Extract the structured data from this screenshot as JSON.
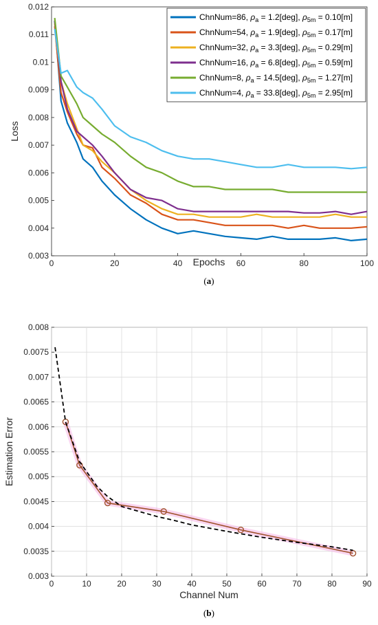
{
  "chart_data": [
    {
      "type": "line",
      "panel": "(a)",
      "panel_prefix": "(",
      "panel_letter": "a",
      "panel_suffix": ")",
      "xlabel": "Epochs",
      "ylabel": "Loss",
      "xlim": [
        0,
        100
      ],
      "ylim": [
        0.003,
        0.012
      ],
      "xticks": [
        "0",
        "20",
        "40",
        "60",
        "80",
        "100"
      ],
      "yticks": [
        "0.003",
        "0.004",
        "0.005",
        "0.006",
        "0.007",
        "0.008",
        "0.009",
        "0.01",
        "0.011",
        "0.012"
      ],
      "grid": false,
      "legend_position": "top-right",
      "legend_label_parts": {
        "rho": "ρ",
        "sub_a": "a",
        "sub_5m": "5m"
      },
      "series": [
        {
          "name": "ChnNum=86, ρa = 1.2[deg], ρ5m = 0.10[m]",
          "legend_parts": {
            "head": "ChnNum=86, ",
            "a_val": " = 1.2[deg], ",
            "m_val": " = 0.10[m]"
          },
          "color": "#0072BD",
          "x": [
            1,
            3,
            5,
            8,
            10,
            13,
            16,
            20,
            25,
            30,
            35,
            40,
            45,
            50,
            55,
            60,
            65,
            70,
            75,
            80,
            85,
            90,
            95,
            100
          ],
          "y": [
            0.0115,
            0.0086,
            0.0078,
            0.0071,
            0.0065,
            0.0062,
            0.0057,
            0.0052,
            0.0047,
            0.0043,
            0.004,
            0.0038,
            0.0039,
            0.0038,
            0.0037,
            0.00365,
            0.0036,
            0.0037,
            0.0036,
            0.0036,
            0.0036,
            0.00365,
            0.00355,
            0.0036
          ]
        },
        {
          "name": "ChnNum=54, ρa = 1.9[deg], ρ5m = 0.17[m]",
          "legend_parts": {
            "head": "ChnNum=54, ",
            "a_val": " = 1.9[deg], ",
            "m_val": " = 0.17[m]"
          },
          "color": "#D95319",
          "x": [
            1,
            3,
            5,
            8,
            10,
            13,
            16,
            20,
            25,
            30,
            35,
            40,
            45,
            50,
            55,
            60,
            65,
            70,
            75,
            80,
            85,
            90,
            95,
            100
          ],
          "y": [
            0.0113,
            0.0089,
            0.0082,
            0.0074,
            0.007,
            0.0069,
            0.0062,
            0.0058,
            0.0052,
            0.0049,
            0.0045,
            0.0043,
            0.0043,
            0.0042,
            0.0041,
            0.0041,
            0.0041,
            0.0041,
            0.004,
            0.0041,
            0.004,
            0.004,
            0.004,
            0.00405
          ]
        },
        {
          "name": "ChnNum=32, ρa = 3.3[deg], ρ5m = 0.29[m]",
          "legend_parts": {
            "head": "ChnNum=32, ",
            "a_val": " = 3.3[deg], ",
            "m_val": " = 0.29[m]"
          },
          "color": "#EDB120",
          "x": [
            1,
            3,
            5,
            8,
            10,
            13,
            16,
            20,
            25,
            30,
            35,
            40,
            45,
            50,
            55,
            60,
            65,
            70,
            75,
            80,
            85,
            90,
            95,
            100
          ],
          "y": [
            0.0114,
            0.0093,
            0.0085,
            0.0076,
            0.007,
            0.0068,
            0.0064,
            0.006,
            0.0054,
            0.005,
            0.0047,
            0.0045,
            0.0045,
            0.0044,
            0.0044,
            0.0044,
            0.0045,
            0.0044,
            0.0044,
            0.0044,
            0.0044,
            0.0045,
            0.0044,
            0.0044
          ]
        },
        {
          "name": "ChnNum=16, ρa = 6.8[deg], ρ5m = 0.59[m]",
          "legend_parts": {
            "head": "ChnNum=16, ",
            "a_val": " = 6.8[deg], ",
            "m_val": " = 0.59[m]"
          },
          "color": "#7E2F8E",
          "x": [
            1,
            3,
            5,
            8,
            10,
            13,
            16,
            20,
            25,
            30,
            35,
            40,
            45,
            50,
            55,
            60,
            65,
            70,
            75,
            80,
            85,
            90,
            95,
            100
          ],
          "y": [
            0.0115,
            0.0093,
            0.0083,
            0.0075,
            0.0073,
            0.007,
            0.0066,
            0.006,
            0.0054,
            0.0051,
            0.005,
            0.0047,
            0.0046,
            0.0046,
            0.0046,
            0.0046,
            0.0046,
            0.0046,
            0.0046,
            0.00455,
            0.00455,
            0.0046,
            0.0045,
            0.0046
          ]
        },
        {
          "name": "ChnNum=8, ρa = 14.5[deg], ρ5m = 1.27[m]",
          "legend_parts": {
            "head": "ChnNum=8, ",
            "a_val": " = 14.5[deg], ",
            "m_val": " = 1.27[m]"
          },
          "color": "#77AC30",
          "x": [
            1,
            3,
            5,
            8,
            10,
            13,
            16,
            20,
            25,
            30,
            35,
            40,
            45,
            50,
            55,
            60,
            65,
            70,
            75,
            80,
            85,
            90,
            95,
            100
          ],
          "y": [
            0.0116,
            0.0095,
            0.0091,
            0.0085,
            0.008,
            0.0077,
            0.0074,
            0.0071,
            0.0066,
            0.0062,
            0.006,
            0.0057,
            0.0055,
            0.0055,
            0.0054,
            0.0054,
            0.0054,
            0.0054,
            0.0053,
            0.0053,
            0.0053,
            0.0053,
            0.0053,
            0.0053
          ]
        },
        {
          "name": "ChnNum=4, ρa = 33.8[deg], ρ5m = 2.95[m]",
          "legend_parts": {
            "head": "ChnNum=4, ",
            "a_val": " = 33.8[deg], ",
            "m_val": " = 2.95[m]"
          },
          "color": "#4DBEEE",
          "x": [
            1,
            3,
            5,
            8,
            10,
            13,
            16,
            20,
            25,
            30,
            35,
            40,
            45,
            50,
            55,
            60,
            65,
            70,
            75,
            80,
            85,
            90,
            95,
            100
          ],
          "y": [
            0.0112,
            0.0096,
            0.0097,
            0.0091,
            0.0089,
            0.0087,
            0.0083,
            0.0077,
            0.0073,
            0.0071,
            0.0068,
            0.0066,
            0.0065,
            0.0065,
            0.0064,
            0.0063,
            0.0062,
            0.0062,
            0.0063,
            0.0062,
            0.0062,
            0.0062,
            0.00615,
            0.0062
          ]
        }
      ]
    },
    {
      "type": "line",
      "panel": "(b)",
      "panel_prefix": "(",
      "panel_letter": "b",
      "panel_suffix": ")",
      "xlabel": "Channel Num",
      "ylabel": "Estimation Error",
      "xlim": [
        0,
        90
      ],
      "ylim": [
        0.003,
        0.008
      ],
      "xticks": [
        "0",
        "10",
        "20",
        "30",
        "40",
        "50",
        "60",
        "70",
        "80",
        "90"
      ],
      "yticks": [
        "0.003",
        "0.0035",
        "0.004",
        "0.0045",
        "0.005",
        "0.0055",
        "0.006",
        "0.0065",
        "0.007",
        "0.0075",
        "0.008"
      ],
      "grid": true,
      "series": [
        {
          "style": "solid-with-circle-markers",
          "color": "#A0522D",
          "x": [
            4,
            8,
            16,
            32,
            54,
            86
          ],
          "y": [
            0.0061,
            0.00523,
            0.00447,
            0.0043,
            0.00393,
            0.00346
          ]
        },
        {
          "style": "dashed-fit",
          "color": "#000000",
          "x": [
            1,
            2,
            3,
            4,
            6,
            8,
            10,
            13,
            16,
            20,
            25,
            30,
            35,
            40,
            50,
            60,
            70,
            80,
            86
          ],
          "y": [
            0.0076,
            0.0071,
            0.0066,
            0.0061,
            0.0057,
            0.0053,
            0.0051,
            0.0048,
            0.0046,
            0.0044,
            0.0043,
            0.0042,
            0.00412,
            0.00403,
            0.0039,
            0.00378,
            0.00368,
            0.00359,
            0.00352
          ]
        }
      ]
    }
  ]
}
